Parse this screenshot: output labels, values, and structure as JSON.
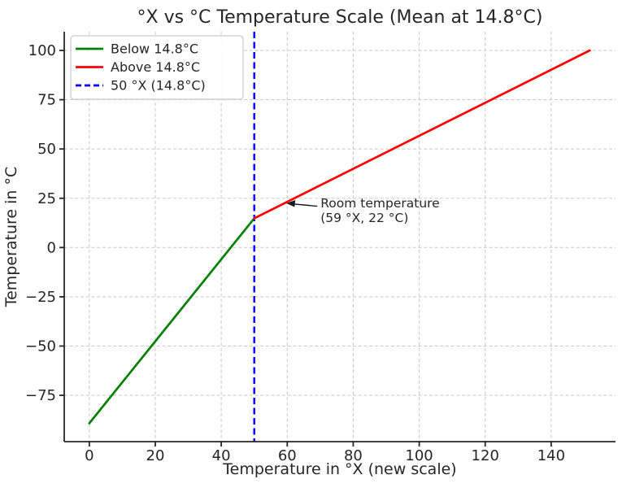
{
  "chart_data": {
    "type": "line",
    "title": "°X vs °C Temperature Scale (Mean at 14.8°C)",
    "xlabel": "Temperature in °X (new scale)",
    "ylabel": "Temperature in °C",
    "xlim": [
      -7.6,
      159.5
    ],
    "ylim": [
      -98.5,
      109.5
    ],
    "xticks": [
      0,
      20,
      40,
      60,
      80,
      100,
      120,
      140
    ],
    "xtick_labels": [
      "0",
      "20",
      "40",
      "60",
      "80",
      "100",
      "120",
      "140"
    ],
    "yticks": [
      -75,
      -50,
      -25,
      0,
      25,
      50,
      75,
      100
    ],
    "ytick_labels": [
      "−75",
      "−50",
      "−25",
      "0",
      "25",
      "50",
      "75",
      "100"
    ],
    "grid": {
      "show": true,
      "style": "dashed",
      "color": "#cdcdcd"
    },
    "series": [
      {
        "name": "Below 14.8°C",
        "color": "#008000",
        "dash": false,
        "points": [
          [
            0,
            -89.2
          ],
          [
            50,
            14.8
          ]
        ]
      },
      {
        "name": "Above 14.8°C",
        "color": "#ff0000",
        "dash": false,
        "points": [
          [
            50,
            14.8
          ],
          [
            151.7,
            100
          ]
        ]
      }
    ],
    "vline": {
      "label": "50 °X (14.8°C)",
      "x": 50,
      "color": "#0000ff",
      "dash": true
    },
    "legend": {
      "position": "upper-left",
      "entries": [
        {
          "label": "Below 14.8°C",
          "color": "#008000",
          "dash": false
        },
        {
          "label": "Above 14.8°C",
          "color": "#ff0000",
          "dash": false
        },
        {
          "label": "50 °X (14.8°C)",
          "color": "#0000ff",
          "dash": true
        }
      ]
    },
    "annotation": {
      "text_lines": [
        "Room temperature",
        "(59 °X, 22 °C)"
      ],
      "point": [
        59,
        22
      ]
    },
    "colors": {
      "text": "#262626",
      "spine": "#262626",
      "grid": "#cdcdcd",
      "background": "#ffffff",
      "annotation_arrow": "#1a1a1a"
    }
  }
}
